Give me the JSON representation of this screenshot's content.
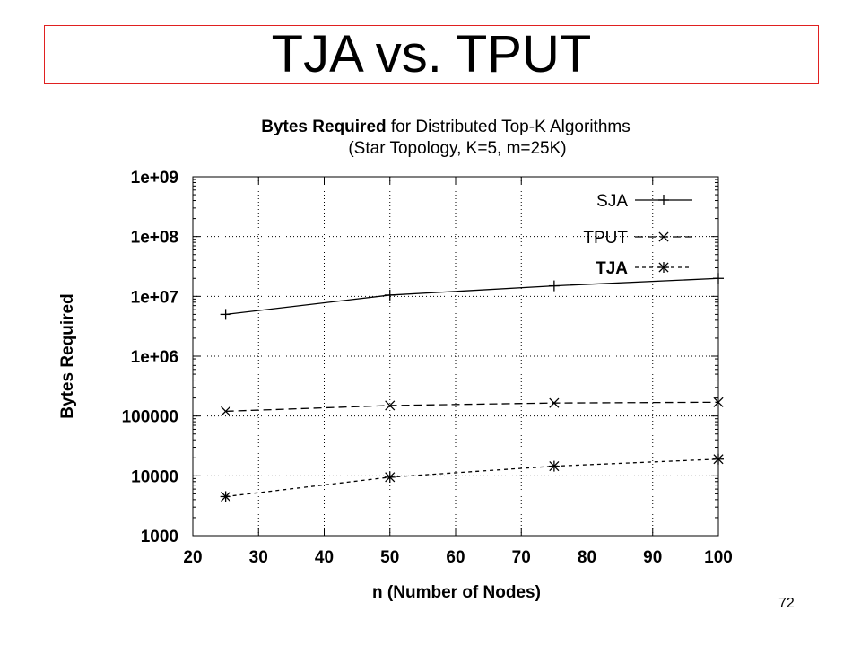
{
  "slide": {
    "title": "TJA vs. TPUT",
    "page_number": "72"
  },
  "chart_data": {
    "type": "line",
    "title_bold": "Bytes Required",
    "title_rest": " for Distributed Top-K Algorithms",
    "subtitle": "(Star Topology, K=5, m=25K)",
    "xlabel": "n (Number of Nodes)",
    "ylabel": "Bytes Required",
    "xlim": [
      20,
      100
    ],
    "ylim": [
      1000,
      1000000000
    ],
    "yscale": "log",
    "x_ticks": [
      20,
      30,
      40,
      50,
      60,
      70,
      80,
      90,
      100
    ],
    "x_tick_labels": [
      "20",
      "30",
      "40",
      "50",
      "60",
      "70",
      "80",
      "90",
      "100"
    ],
    "y_ticks": [
      1000,
      10000,
      100000,
      1000000,
      10000000,
      100000000,
      1000000000
    ],
    "y_tick_labels": [
      "1000",
      "10000",
      "100000",
      "1e+06",
      "1e+07",
      "1e+08",
      "1e+09"
    ],
    "grid": true,
    "legend_position": "top-right",
    "x": [
      25,
      50,
      75,
      100
    ],
    "series": [
      {
        "name": "SJA",
        "values": [
          5000000,
          10500000,
          15000000,
          20000000
        ],
        "marker": "plus",
        "dash": "solid"
      },
      {
        "name": "TPUT",
        "values": [
          120000,
          150000,
          165000,
          170000
        ],
        "marker": "cross",
        "dash": "dashed"
      },
      {
        "name": "TJA",
        "values": [
          4500,
          9500,
          14500,
          19000
        ],
        "marker": "asterisk",
        "dash": "dotted"
      }
    ]
  }
}
